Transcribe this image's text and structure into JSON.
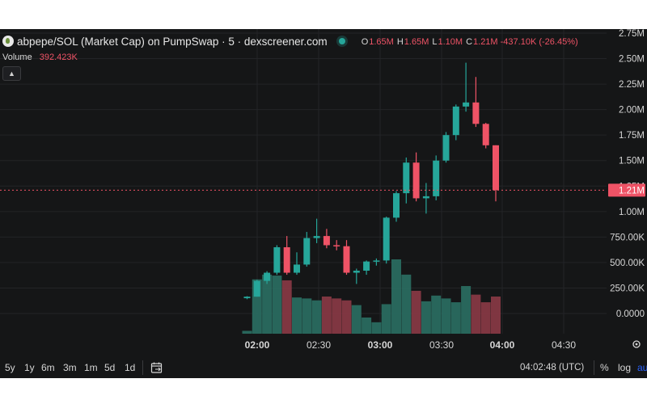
{
  "header": {
    "pair_title": "abpepe/SOL (Market Cap) on PumpSwap · 5 · dexscreener.com",
    "ohlc": [
      {
        "label": "O",
        "value": "1.65M"
      },
      {
        "label": "H",
        "value": "1.65M"
      },
      {
        "label": "L",
        "value": "1.10M"
      },
      {
        "label": "C",
        "value": "1.21M -437.10K (-26.45%)"
      }
    ]
  },
  "volume": {
    "label": "Volume",
    "value": "392.423K"
  },
  "price_axis": {
    "ticks": [
      "2.75M",
      "2.50M",
      "2.25M",
      "2.00M",
      "1.75M",
      "1.50M",
      "1.25M",
      "1.00M",
      "750.00K",
      "500.00K",
      "250.00K",
      "0.0000"
    ],
    "current_price_label": "1.21M"
  },
  "time_axis": {
    "ticks": [
      {
        "label": "02:00",
        "bold": true
      },
      {
        "label": "02:30",
        "bold": false
      },
      {
        "label": "03:00",
        "bold": true
      },
      {
        "label": "03:30",
        "bold": false
      },
      {
        "label": "04:00",
        "bold": true
      },
      {
        "label": "04:30",
        "bold": false
      }
    ]
  },
  "bottom_bar": {
    "ranges": [
      "5y",
      "1y",
      "6m",
      "3m",
      "1m",
      "5d",
      "1d"
    ],
    "clock": "04:02:48 (UTC)",
    "percent": "%",
    "log": "log",
    "auto": "au"
  },
  "colors": {
    "up": "#26a69a",
    "down": "#ef5366",
    "background": "#151617",
    "grid": "#232427",
    "text": "#d6d6d6",
    "accent": "#2962ff"
  },
  "chart_data": {
    "type": "candlestick",
    "interval": "5m",
    "x_unit": "time (UTC)",
    "y_unit": "market cap",
    "ylim": [
      0,
      2750000
    ],
    "times": [
      "01:55",
      "02:00",
      "02:05",
      "02:10",
      "02:15",
      "02:20",
      "02:25",
      "02:30",
      "02:35",
      "02:40",
      "02:45",
      "02:50",
      "02:55",
      "03:00",
      "03:05",
      "03:10",
      "03:15",
      "03:20",
      "03:25",
      "03:30",
      "03:35",
      "03:40",
      "03:45",
      "03:50",
      "03:55",
      "04:00"
    ],
    "candles": [
      {
        "o": 150000,
        "h": 170000,
        "l": 140000,
        "c": 165000
      },
      {
        "o": 165000,
        "h": 330000,
        "l": 165000,
        "c": 320000
      },
      {
        "o": 320000,
        "h": 415000,
        "l": 290000,
        "c": 400000
      },
      {
        "o": 400000,
        "h": 670000,
        "l": 380000,
        "c": 650000
      },
      {
        "o": 650000,
        "h": 760000,
        "l": 380000,
        "c": 400000
      },
      {
        "o": 400000,
        "h": 600000,
        "l": 380000,
        "c": 480000
      },
      {
        "o": 480000,
        "h": 800000,
        "l": 460000,
        "c": 740000
      },
      {
        "o": 740000,
        "h": 930000,
        "l": 690000,
        "c": 760000
      },
      {
        "o": 760000,
        "h": 830000,
        "l": 640000,
        "c": 670000
      },
      {
        "o": 670000,
        "h": 720000,
        "l": 620000,
        "c": 660000
      },
      {
        "o": 660000,
        "h": 720000,
        "l": 380000,
        "c": 400000
      },
      {
        "o": 400000,
        "h": 440000,
        "l": 290000,
        "c": 420000
      },
      {
        "o": 420000,
        "h": 520000,
        "l": 380000,
        "c": 510000
      },
      {
        "o": 510000,
        "h": 540000,
        "l": 470000,
        "c": 520000
      },
      {
        "o": 520000,
        "h": 950000,
        "l": 490000,
        "c": 940000
      },
      {
        "o": 940000,
        "h": 1200000,
        "l": 900000,
        "c": 1180000
      },
      {
        "o": 1180000,
        "h": 1530000,
        "l": 1080000,
        "c": 1480000
      },
      {
        "o": 1480000,
        "h": 1580000,
        "l": 1100000,
        "c": 1130000
      },
      {
        "o": 1130000,
        "h": 1280000,
        "l": 980000,
        "c": 1150000
      },
      {
        "o": 1150000,
        "h": 1550000,
        "l": 1110000,
        "c": 1500000
      },
      {
        "o": 1500000,
        "h": 1780000,
        "l": 1480000,
        "c": 1750000
      },
      {
        "o": 1750000,
        "h": 2050000,
        "l": 1700000,
        "c": 2030000
      },
      {
        "o": 2030000,
        "h": 2460000,
        "l": 1980000,
        "c": 2070000
      },
      {
        "o": 2070000,
        "h": 2320000,
        "l": 1830000,
        "c": 1860000
      },
      {
        "o": 1860000,
        "h": 1870000,
        "l": 1620000,
        "c": 1650000
      },
      {
        "o": 1650000,
        "h": 1650000,
        "l": 1100000,
        "c": 1210000
      }
    ],
    "volume": [
      30000,
      570000,
      620000,
      610000,
      560000,
      380000,
      370000,
      350000,
      390000,
      370000,
      350000,
      300000,
      170000,
      120000,
      310000,
      780000,
      620000,
      450000,
      340000,
      400000,
      370000,
      330000,
      500000,
      410000,
      330000,
      390000
    ],
    "current_price": 1210000
  }
}
